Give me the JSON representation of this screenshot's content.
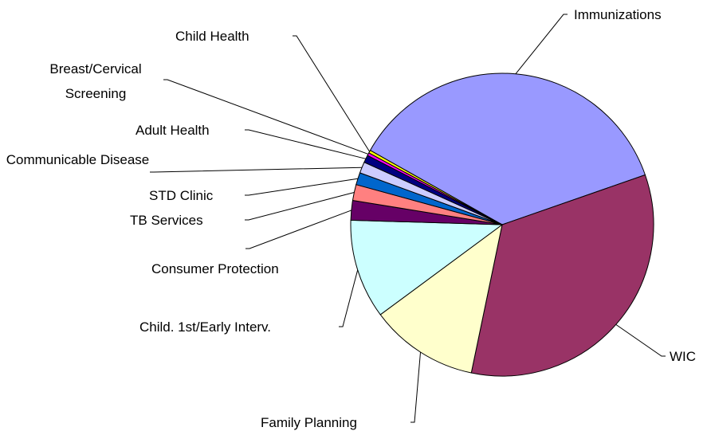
{
  "chart_data": {
    "type": "pie",
    "categories": [
      "Immunizations",
      "WIC",
      "Family Planning",
      "Child. 1st/Early Interv.",
      "Consumer Protection",
      "TB Services",
      "STD Clinic",
      "Communicable Disease",
      "Adult Health",
      "Breast/Cervical Screening",
      "Child Health"
    ],
    "values": [
      36.5,
      33.6,
      11.6,
      10.6,
      2.1,
      1.7,
      1.3,
      1.2,
      0.8,
      0.3,
      0.3
    ],
    "colors": [
      "#9999ff",
      "#993366",
      "#ffffcc",
      "#ccffff",
      "#660066",
      "#ff8080",
      "#0066cc",
      "#ccccff",
      "#000080",
      "#ff00ff",
      "#ffff00"
    ]
  }
}
